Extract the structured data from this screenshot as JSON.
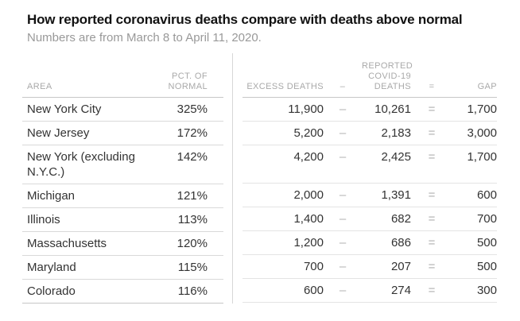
{
  "title": "How reported coronavirus deaths compare with deaths above normal",
  "subtitle": "Numbers are from March 8 to April 11, 2020.",
  "symbols": {
    "minus": "–",
    "equals": "="
  },
  "headers": {
    "area": "AREA",
    "pct": [
      "PCT. OF",
      "NORMAL"
    ],
    "excess": "EXCESS DEATHS",
    "covid": [
      "REPORTED",
      "COVID-19",
      "DEATHS"
    ],
    "gap": "GAP"
  },
  "colors": {
    "title_text": "#121212",
    "subtitle_text": "#999999",
    "header_text": "#a9a9a9",
    "body_text": "#333333",
    "operator_text": "#b0b0b0",
    "header_rule": "#c7c7c7",
    "row_rule_left": "#d9d9d9",
    "row_rule_right": "#e4e4e4",
    "divider": "#d6d6d6"
  },
  "chart_data": {
    "type": "table",
    "columns": [
      "Area",
      "Pct. of normal",
      "Excess deaths",
      "Reported Covid-19 deaths",
      "Gap"
    ],
    "rows": [
      {
        "area": "New York City",
        "pct": "325%",
        "excess": "11,900",
        "covid": "10,261",
        "gap": "1,700"
      },
      {
        "area": "New Jersey",
        "pct": "172%",
        "excess": "5,200",
        "covid": "2,183",
        "gap": "3,000"
      },
      {
        "area": "New York (excluding N.Y.C.)",
        "pct": "142%",
        "excess": "4,200",
        "covid": "2,425",
        "gap": "1,700"
      },
      {
        "area": "Michigan",
        "pct": "121%",
        "excess": "2,000",
        "covid": "1,391",
        "gap": "600"
      },
      {
        "area": "Illinois",
        "pct": "113%",
        "excess": "1,400",
        "covid": "682",
        "gap": "700"
      },
      {
        "area": "Massachusetts",
        "pct": "120%",
        "excess": "1,200",
        "covid": "686",
        "gap": "500"
      },
      {
        "area": "Maryland",
        "pct": "115%",
        "excess": "700",
        "covid": "207",
        "gap": "500"
      },
      {
        "area": "Colorado",
        "pct": "116%",
        "excess": "600",
        "covid": "274",
        "gap": "300"
      }
    ]
  }
}
